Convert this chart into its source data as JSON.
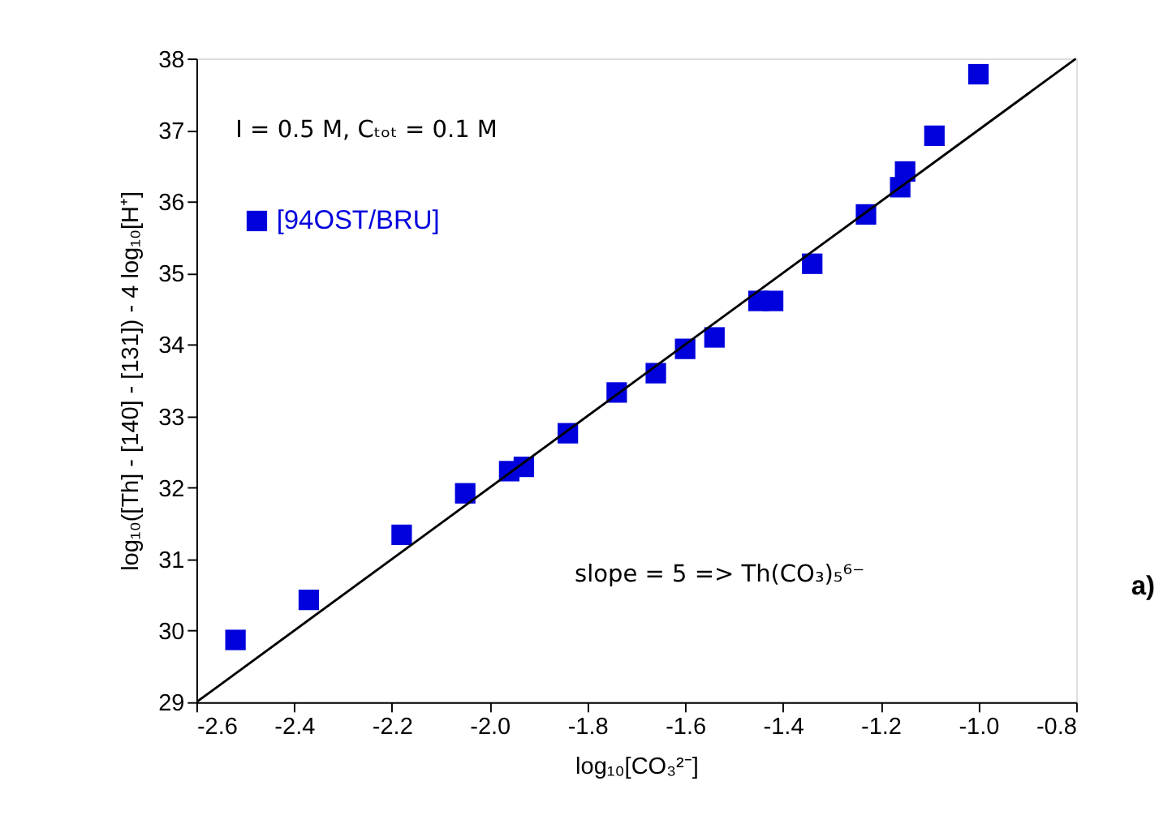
{
  "chart_data": {
    "type": "scatter",
    "xlabel": "log₁₀[CO₃²⁻]",
    "ylabel": "log₁₀([Th] - [140] - [131]) - 4 log₁₀[H⁺]",
    "annotations": [
      "I = 0.5 M,  Cₜₒₜ = 0.1 M",
      "slope = 5   => Th(CO₃)₅⁶⁻",
      "a)"
    ],
    "series": [
      {
        "name": "[94OST/BRU]",
        "color": "#0000dd",
        "marker": "square",
        "x": [
          -2.52,
          -2.37,
          -2.18,
          -2.05,
          -1.96,
          -1.93,
          -1.84,
          -1.74,
          -1.66,
          -1.6,
          -1.54,
          -1.45,
          -1.42,
          -1.34,
          -1.23,
          -1.16,
          -1.15,
          -1.09,
          -1.0
        ],
        "values": [
          29.87,
          30.43,
          31.34,
          31.92,
          32.23,
          32.29,
          32.76,
          33.33,
          33.6,
          33.94,
          34.1,
          34.61,
          34.61,
          35.13,
          35.82,
          36.2,
          36.42,
          36.92,
          37.78
        ]
      },
      {
        "type": "line",
        "color": "#000000",
        "x": [
          -2.6,
          -0.8
        ],
        "values": [
          29.0,
          38.0
        ]
      }
    ],
    "xlim": [
      -2.6,
      -0.8
    ],
    "xticks": [
      -2.6,
      -2.4,
      -2.2,
      {
        "value": -2.0,
        "label": "-2.0"
      },
      -1.8,
      -1.6,
      -1.4,
      -1.2,
      {
        "value": -1.0,
        "label": "-1.0"
      },
      -0.8
    ],
    "ylim": [
      29,
      38
    ],
    "yticks": [
      29,
      30,
      31,
      32,
      33,
      34,
      35,
      36,
      37,
      38
    ],
    "grid": false,
    "legend": "top left"
  }
}
